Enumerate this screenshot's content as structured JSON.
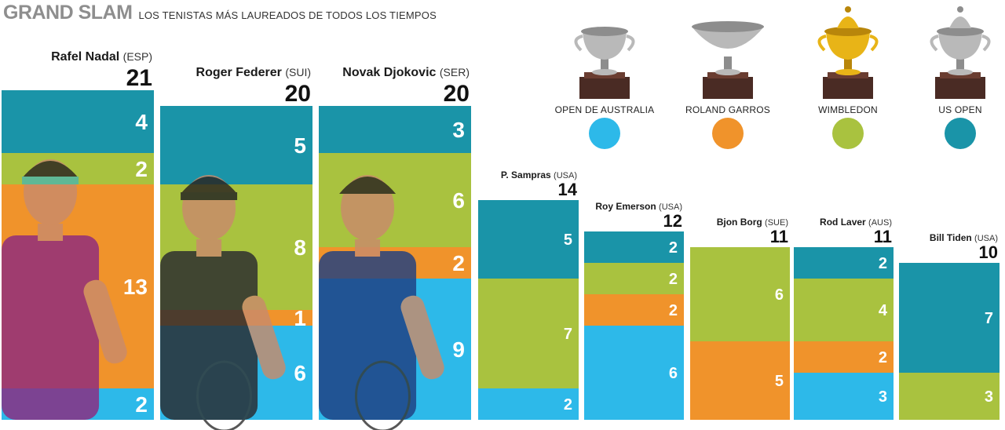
{
  "header": {
    "title": "GRAND SLAM",
    "subtitle": "LOS TENISTAS MÁS LAUREADOS DE TODOS LOS TIEMPOS"
  },
  "colors": {
    "open_de_australia": "#2db9e9",
    "roland_garros": "#f0932b",
    "wimbledon": "#a9c23f",
    "us_open": "#1a94a8"
  },
  "legend": [
    {
      "key": "open_de_australia",
      "label": "OPEN DE AUSTRALIA",
      "icon": "silver-trophy-icon"
    },
    {
      "key": "roland_garros",
      "label": "ROLAND GARROS",
      "icon": "silver-cup-icon"
    },
    {
      "key": "wimbledon",
      "label": "WIMBLEDON",
      "icon": "gold-trophy-icon"
    },
    {
      "key": "us_open",
      "label": "US OPEN",
      "icon": "silver-trophy-icon"
    }
  ],
  "chart_data": {
    "type": "bar",
    "stacked": true,
    "title": "GRAND SLAM",
    "subtitle": "LOS TENISTAS MÁS LAUREADOS DE TODOS LOS TIEMPOS",
    "categories": [
      "Rafel Nadal",
      "Roger Federer",
      "Novak Djokovic",
      "P. Sampras",
      "Roy Emerson",
      "Bjon Borg",
      "Rod Laver",
      "Bill Tiden"
    ],
    "countries": [
      "(ESP)",
      "(SUI)",
      "(SER)",
      "(USA)",
      "(USA)",
      "(SUE)",
      "(AUS)",
      "(USA)"
    ],
    "totals": [
      21,
      20,
      20,
      14,
      12,
      11,
      11,
      10
    ],
    "series": [
      {
        "name": "US OPEN",
        "key": "us_open",
        "values": [
          4,
          5,
          3,
          5,
          2,
          0,
          2,
          7
        ]
      },
      {
        "name": "WIMBLEDON",
        "key": "wimbledon",
        "values": [
          2,
          8,
          6,
          7,
          2,
          6,
          4,
          3
        ]
      },
      {
        "name": "ROLAND GARROS",
        "key": "roland_garros",
        "values": [
          13,
          1,
          2,
          0,
          2,
          5,
          2,
          0
        ]
      },
      {
        "name": "OPEN DE AUSTRALIA",
        "key": "open_de_australia",
        "values": [
          2,
          6,
          9,
          2,
          6,
          0,
          3,
          0
        ]
      }
    ],
    "photos": [
      "Rafel Nadal",
      "Roger Federer",
      "Novak Djokovic"
    ],
    "legend_position": "top-right"
  }
}
